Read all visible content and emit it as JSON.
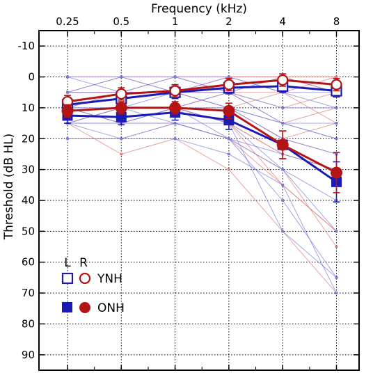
{
  "colors": {
    "left_ear": "#1a1ab4",
    "right_ear": "#b41414",
    "left_ear_faint": "#7777dd",
    "right_ear_faint": "#dd7777",
    "grid": "#000000",
    "background": "#ffffff"
  },
  "chart_data": {
    "type": "line",
    "xlabel": "Frequency (kHz)",
    "ylabel": "Threshold (dB HL)",
    "x_position": "top",
    "y_reversed": true,
    "grid": true,
    "categories": [
      "0.25",
      "0.5",
      "1",
      "2",
      "4",
      "8"
    ],
    "ylim": [
      -15,
      95
    ],
    "yticks": [
      -10,
      0,
      10,
      20,
      30,
      40,
      50,
      60,
      70,
      80,
      90
    ],
    "ytick_labels": [
      "-10",
      "0",
      "10",
      "20",
      "30",
      "40",
      "50",
      "60",
      "70",
      "80",
      "90"
    ],
    "legend": {
      "placement": "lower-left",
      "header_left": "L",
      "header_right": "R",
      "entries": [
        {
          "label": "YNH",
          "left_marker": "open-square",
          "right_marker": "open-circle"
        },
        {
          "label": "ONH",
          "left_marker": "filled-square",
          "right_marker": "filled-circle"
        }
      ]
    },
    "series": [
      {
        "name": "YNH",
        "ear": "L",
        "marker": "open-square",
        "values": [
          9,
          7,
          5,
          3.5,
          3,
          4.5
        ],
        "error": [
          2,
          2,
          2,
          2,
          2,
          2
        ]
      },
      {
        "name": "YNH",
        "ear": "R",
        "marker": "open-circle",
        "values": [
          8,
          5.5,
          4.5,
          2.5,
          1,
          2.5
        ],
        "error": [
          2,
          2,
          2,
          2,
          2,
          2
        ]
      },
      {
        "name": "ONH",
        "ear": "L",
        "marker": "filled-square",
        "values": [
          12.5,
          13,
          11.5,
          14,
          22,
          34
        ],
        "error": [
          2.5,
          2.5,
          2.5,
          3,
          4.5,
          6.5
        ]
      },
      {
        "name": "ONH",
        "ear": "R",
        "marker": "filled-circle",
        "values": [
          11,
          10,
          10,
          11,
          22,
          31
        ],
        "error": [
          2,
          2,
          2,
          2.5,
          4.5,
          6.5
        ]
      }
    ],
    "individual_left": [
      [
        0,
        0,
        5,
        5,
        10,
        10
      ],
      [
        5,
        0,
        0,
        0,
        5,
        5
      ],
      [
        5,
        5,
        5,
        10,
        15,
        15
      ],
      [
        10,
        5,
        5,
        0,
        5,
        10
      ],
      [
        10,
        10,
        10,
        5,
        15,
        20
      ],
      [
        0,
        5,
        0,
        5,
        0,
        5
      ],
      [
        15,
        15,
        10,
        10,
        15,
        20
      ],
      [
        10,
        15,
        15,
        20,
        30,
        40
      ],
      [
        15,
        20,
        15,
        20,
        40,
        65
      ],
      [
        10,
        10,
        15,
        15,
        30,
        50
      ],
      [
        20,
        20,
        20,
        25,
        35,
        70
      ],
      [
        15,
        15,
        10,
        20,
        25,
        30
      ],
      [
        10,
        10,
        5,
        10,
        20,
        25
      ],
      [
        15,
        10,
        10,
        15,
        50,
        65
      ]
    ],
    "individual_right": [
      [
        0,
        0,
        0,
        0,
        0,
        0
      ],
      [
        5,
        5,
        0,
        5,
        10,
        5
      ],
      [
        10,
        5,
        5,
        5,
        5,
        0
      ],
      [
        5,
        5,
        5,
        0,
        0,
        5
      ],
      [
        10,
        10,
        10,
        5,
        15,
        10
      ],
      [
        5,
        0,
        5,
        10,
        5,
        15
      ],
      [
        15,
        10,
        10,
        10,
        20,
        15
      ],
      [
        10,
        15,
        15,
        20,
        35,
        50
      ],
      [
        15,
        25,
        20,
        30,
        50,
        70
      ],
      [
        10,
        10,
        10,
        15,
        25,
        30
      ],
      [
        20,
        20,
        15,
        20,
        30,
        55
      ],
      [
        15,
        10,
        10,
        10,
        20,
        25
      ],
      [
        10,
        15,
        10,
        15,
        35,
        50
      ],
      [
        15,
        10,
        10,
        15,
        25,
        30
      ]
    ]
  }
}
